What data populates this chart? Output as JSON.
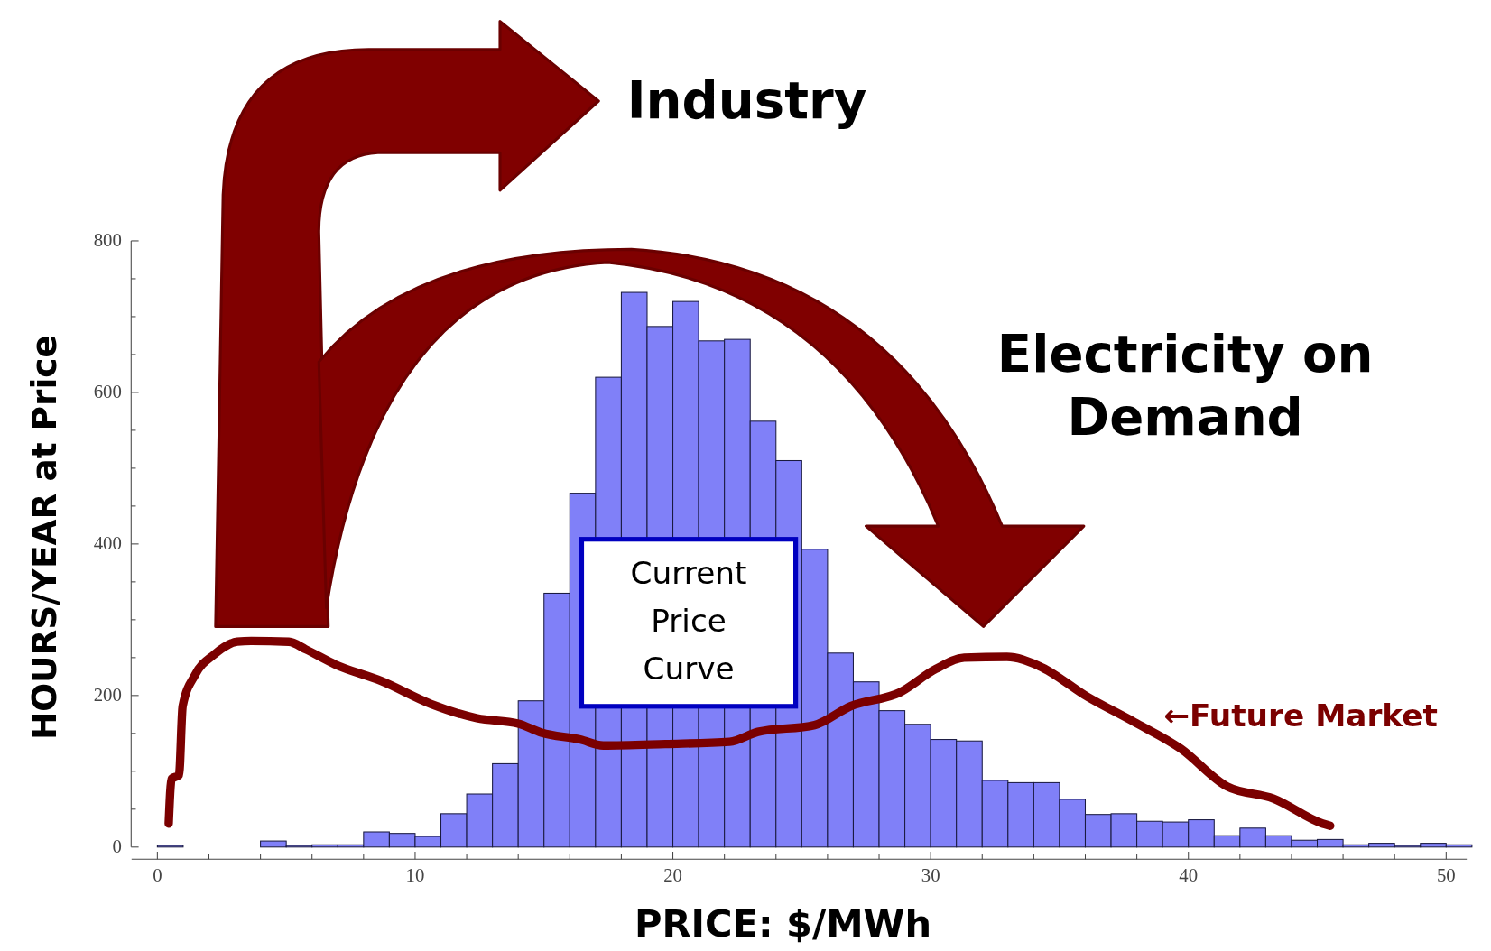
{
  "chart_data": {
    "type": "histogram",
    "xlabel": "PRICE: $/MWh",
    "ylabel": "HOURS/YEAR at Price",
    "annotations": [
      "Industry",
      "Electricity on Demand",
      "Current Price Curve"
    ],
    "bins": [
      0,
      1,
      2,
      3,
      4,
      5,
      6,
      7,
      8,
      9,
      10,
      11,
      12,
      13,
      14,
      15,
      16,
      17,
      18,
      19,
      20,
      21,
      22,
      23,
      24,
      25,
      26,
      27,
      28,
      29,
      30,
      31,
      32,
      33,
      34,
      35,
      36,
      37,
      38,
      39,
      40,
      41,
      42,
      43,
      44,
      45,
      46,
      47,
      48,
      49,
      50,
      51
    ],
    "series": [
      {
        "color": "#8080f8",
        "values": [
          2,
          0,
          0,
          0,
          8,
          2,
          3,
          3,
          20,
          18,
          14,
          44,
          70,
          110,
          193,
          335,
          467,
          620,
          732,
          687,
          720,
          668,
          670,
          562,
          510,
          393,
          256,
          218,
          180,
          162,
          142,
          140,
          88,
          85,
          85,
          63,
          43,
          44,
          34,
          33,
          36,
          15,
          25,
          15,
          9,
          10,
          3,
          5,
          2,
          5,
          3
        ]
      },
      {
        "type": "line",
        "name": "←Future Market",
        "color": "#7b0000",
        "x": [
          0.44,
          0.55,
          0.84,
          0.98,
          1.46,
          2.2,
          3.1,
          3.64,
          5.1,
          5.75,
          6.9,
          8.7,
          10.6,
          12.4,
          14.0,
          14.9,
          16.4,
          17.3,
          19.7,
          22.2,
          23.3,
          25.5,
          26.9,
          28.8,
          30.2,
          31.3,
          32.96,
          34.2,
          36.1,
          37.9,
          39.7,
          41.5,
          43.3,
          45.2,
          45.5
        ],
        "values": [
          31,
          90,
          95,
          186,
          227,
          254,
          271,
          272,
          271,
          261,
          241,
          219,
          189,
          170,
          163,
          151,
          142,
          134,
          136,
          139,
          152,
          161,
          186,
          204,
          235,
          250,
          251,
          239,
          198,
          165,
          130,
          80,
          64,
          31,
          28
        ]
      }
    ],
    "xlim": [
      -1,
      50.8
    ],
    "ylim": [
      0,
      800
    ],
    "xticks": [
      0,
      {
        "value": 2,
        "label": null
      },
      {
        "value": 4,
        "label": null
      },
      {
        "value": 6,
        "label": null
      },
      {
        "value": 8,
        "label": null
      },
      10,
      {
        "value": 12,
        "label": null
      },
      {
        "value": 14,
        "label": null
      },
      {
        "value": 16,
        "label": null
      },
      {
        "value": 18,
        "label": null
      },
      20,
      {
        "value": 22,
        "label": null
      },
      {
        "value": 24,
        "label": null
      },
      {
        "value": 26,
        "label": null
      },
      {
        "value": 28,
        "label": null
      },
      30,
      {
        "value": 32,
        "label": null
      },
      {
        "value": 34,
        "label": null
      },
      {
        "value": 36,
        "label": null
      },
      {
        "value": 38,
        "label": null
      },
      40,
      {
        "value": 42,
        "label": null
      },
      {
        "value": 44,
        "label": null
      },
      {
        "value": 46,
        "label": null
      },
      {
        "value": 48,
        "label": null
      },
      50
    ],
    "yticks": [
      0,
      {
        "value": 50,
        "label": null
      },
      {
        "value": 100,
        "label": null
      },
      {
        "value": 150,
        "label": null
      },
      200,
      {
        "value": 250,
        "label": null
      },
      {
        "value": 300,
        "label": null
      },
      {
        "value": 350,
        "label": null
      },
      400,
      {
        "value": 450,
        "label": null
      },
      {
        "value": 500,
        "label": null
      },
      {
        "value": 550,
        "label": null
      },
      600,
      {
        "value": 650,
        "label": null
      },
      {
        "value": 700,
        "label": null
      },
      {
        "value": 750,
        "label": null
      },
      800
    ]
  }
}
